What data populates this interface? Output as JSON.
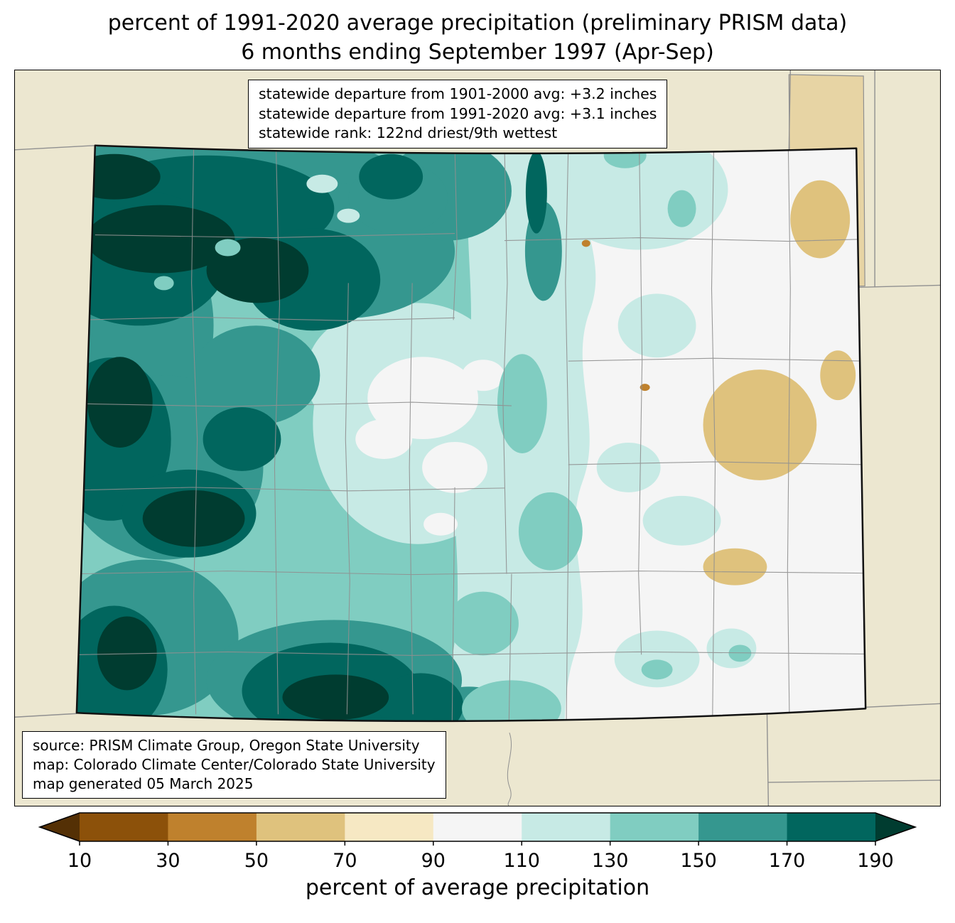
{
  "title": {
    "line1": "percent of 1991-2020 average precipitation (preliminary PRISM data)",
    "line2": "6 months ending September 1997 (Apr-Sep)"
  },
  "stats_box": {
    "line1": "statewide departure from 1901-2000 avg: +3.2 inches",
    "line2": "statewide departure from 1991-2020 avg: +3.1 inches",
    "line3": "statewide rank: 122nd driest/9th wettest"
  },
  "source_box": {
    "line1": "source: PRISM Climate Group, Oregon State University",
    "line2": "map: Colorado Climate Center/Colorado State University",
    "line3": "map generated 05 March 2025"
  },
  "colorbar": {
    "label": "percent of average precipitation",
    "ticks": [
      "10",
      "30",
      "50",
      "70",
      "90",
      "110",
      "130",
      "150",
      "170",
      "190"
    ],
    "segments": [
      "#8c510a",
      "#bf812d",
      "#dfc27d",
      "#f6e8c3",
      "#f5f5f5",
      "#c7eae5",
      "#80cdc1",
      "#35978f",
      "#01665e"
    ],
    "arrow_left": "#543005",
    "arrow_right": "#003c30"
  },
  "map": {
    "region": "Colorado",
    "land_color": "#ece7d0",
    "county_line_color": "#909090",
    "out_of_state_patch_color": "#e7d4a4",
    "state_border_color": "#111111"
  }
}
